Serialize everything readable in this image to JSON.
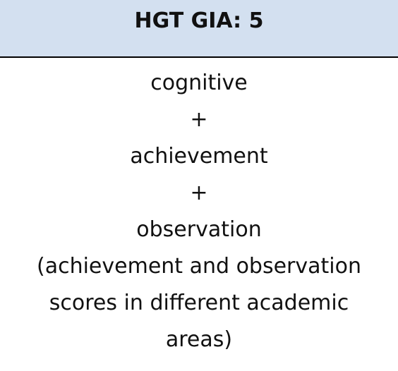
{
  "header": {
    "title": "HGT GIA: 5"
  },
  "body": {
    "lines": [
      "cognitive",
      "+",
      "achievement",
      "+",
      "observation",
      "(achievement and observation",
      "scores in different academic",
      "areas)"
    ]
  },
  "colors": {
    "header_background": "#d3e0f0",
    "divider": "#000000",
    "text": "#111111"
  }
}
